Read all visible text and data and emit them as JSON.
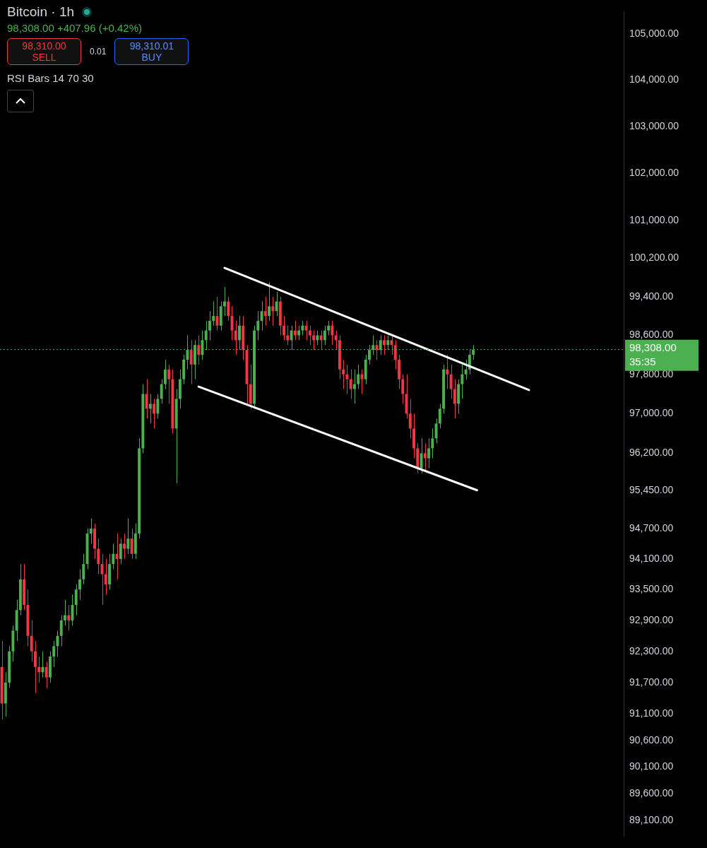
{
  "chart_data": {
    "type": "candlestick",
    "title": "Bitcoin · 1h",
    "subtitle": "98,308.00 +407.96 (+0.42%)",
    "annotations": [
      "98,310.00",
      "SELL",
      "0.01",
      "98,310.01",
      "BUY",
      "RSI Bars 14 70 30",
      "35:35"
    ],
    "categories": [
      null,
      null,
      null,
      null,
      null,
      null,
      null,
      null,
      null,
      null,
      null,
      null,
      null,
      null,
      null,
      null,
      null,
      null,
      null,
      null,
      null,
      null,
      null,
      null,
      null,
      null,
      null,
      null,
      null,
      null,
      null,
      null,
      null,
      null,
      null,
      null,
      null,
      null,
      null,
      null,
      null,
      null,
      null,
      null,
      null,
      null,
      null,
      null,
      null,
      null,
      null,
      null,
      null,
      null,
      null,
      null,
      null,
      null,
      null,
      null,
      null,
      null,
      null,
      null,
      null,
      null,
      null,
      null,
      null,
      null,
      null,
      null,
      null,
      null,
      null,
      null,
      null,
      null,
      null,
      null,
      null,
      null,
      null,
      null,
      null,
      null,
      null,
      null,
      null,
      null,
      null,
      null,
      null,
      null,
      null,
      null,
      null,
      null,
      null,
      null,
      null,
      null,
      null,
      null,
      null,
      null,
      null,
      null,
      null,
      null,
      null,
      null,
      null,
      null,
      null,
      null,
      null,
      null,
      null,
      null,
      null,
      null,
      null,
      null,
      null,
      null,
      null,
      null,
      null,
      null,
      null,
      null,
      null,
      null,
      null,
      null,
      null,
      null,
      null,
      null,
      null,
      null,
      null,
      null,
      null,
      null,
      null,
      null,
      null,
      null,
      null,
      null,
      null,
      null,
      null,
      null,
      null,
      null,
      null,
      null,
      null,
      null,
      null,
      null,
      null,
      null,
      null,
      null
    ],
    "ohlc": [
      [
        92000,
        92500,
        91000,
        91300
      ],
      [
        91300,
        91900,
        91050,
        91700
      ],
      [
        91700,
        92400,
        91600,
        92300
      ],
      [
        92300,
        92800,
        92100,
        92700
      ],
      [
        92700,
        93300,
        92500,
        93100
      ],
      [
        93100,
        94000,
        93000,
        93700
      ],
      [
        93700,
        94000,
        93100,
        93200
      ],
      [
        93200,
        93500,
        92400,
        92600
      ],
      [
        92600,
        92900,
        92100,
        92300
      ],
      [
        92300,
        92500,
        91500,
        92000
      ],
      [
        92000,
        92200,
        91700,
        91900
      ],
      [
        91900,
        92300,
        91800,
        92000
      ],
      [
        92000,
        92100,
        91600,
        91800
      ],
      [
        91800,
        92300,
        91700,
        92200
      ],
      [
        92200,
        92500,
        92000,
        92400
      ],
      [
        92400,
        92700,
        92200,
        92600
      ],
      [
        92600,
        93000,
        92400,
        92900
      ],
      [
        92900,
        93300,
        92800,
        93000
      ],
      [
        93000,
        93200,
        92700,
        92900
      ],
      [
        92900,
        93400,
        92800,
        93200
      ],
      [
        93200,
        93600,
        93000,
        93500
      ],
      [
        93500,
        93900,
        93300,
        93700
      ],
      [
        93700,
        94200,
        93600,
        94000
      ],
      [
        94000,
        94700,
        93900,
        94600
      ],
      [
        94600,
        94900,
        94400,
        94700
      ],
      [
        94700,
        94800,
        94100,
        94300
      ],
      [
        94300,
        94500,
        93800,
        94000
      ],
      [
        94000,
        94200,
        93200,
        93800
      ],
      [
        93800,
        94100,
        93400,
        93600
      ],
      [
        93600,
        94200,
        93500,
        94000
      ],
      [
        94000,
        94400,
        93900,
        94200
      ],
      [
        94200,
        94600,
        93700,
        94100
      ],
      [
        94100,
        94500,
        94000,
        94400
      ],
      [
        94400,
        94600,
        94100,
        94300
      ],
      [
        94300,
        94900,
        94200,
        94500
      ],
      [
        94500,
        94700,
        94100,
        94200
      ],
      [
        94200,
        94800,
        94100,
        94600
      ],
      [
        94600,
        96500,
        94500,
        96300
      ],
      [
        96300,
        97600,
        96200,
        97400
      ],
      [
        97400,
        97700,
        96900,
        97100
      ],
      [
        97100,
        97400,
        96800,
        97200
      ],
      [
        97200,
        97300,
        96700,
        97000
      ],
      [
        97000,
        97400,
        96900,
        97300
      ],
      [
        97300,
        97700,
        97200,
        97600
      ],
      [
        97600,
        98100,
        97500,
        97900
      ],
      [
        97900,
        98000,
        97200,
        97700
      ],
      [
        97700,
        97900,
        96600,
        96700
      ],
      [
        96700,
        97500,
        95600,
        97300
      ],
      [
        97300,
        97900,
        97100,
        97700
      ],
      [
        97700,
        98200,
        97600,
        98100
      ],
      [
        98100,
        98600,
        97900,
        98300
      ],
      [
        98300,
        98500,
        97600,
        98000
      ],
      [
        98000,
        98500,
        97700,
        98400
      ],
      [
        98400,
        98600,
        98000,
        98200
      ],
      [
        98200,
        98700,
        98100,
        98500
      ],
      [
        98500,
        98900,
        98300,
        98700
      ],
      [
        98700,
        99100,
        98500,
        98900
      ],
      [
        98900,
        99300,
        98800,
        99000
      ],
      [
        99000,
        99400,
        98700,
        98800
      ],
      [
        98800,
        99300,
        98700,
        99200
      ],
      [
        99200,
        99600,
        99000,
        99300
      ],
      [
        99300,
        99400,
        98900,
        99000
      ],
      [
        99000,
        99200,
        98500,
        98700
      ],
      [
        98700,
        98900,
        98200,
        98500
      ],
      [
        98500,
        99000,
        98300,
        98800
      ],
      [
        98800,
        99000,
        98100,
        98300
      ],
      [
        98300,
        98400,
        97200,
        97600
      ],
      [
        97600,
        98000,
        97100,
        97200
      ],
      [
        97200,
        98800,
        97100,
        98700
      ],
      [
        98700,
        99100,
        98500,
        98900
      ],
      [
        98900,
        99300,
        98700,
        99100
      ],
      [
        99100,
        99400,
        98800,
        99000
      ],
      [
        99000,
        99700,
        98900,
        99200
      ],
      [
        99200,
        99400,
        98800,
        99100
      ],
      [
        99100,
        99500,
        99000,
        99300
      ],
      [
        99300,
        99400,
        98600,
        98800
      ],
      [
        98800,
        99000,
        98500,
        98600
      ],
      [
        98600,
        98800,
        98400,
        98500
      ],
      [
        98500,
        98800,
        98300,
        98700
      ],
      [
        98700,
        98900,
        98500,
        98600
      ],
      [
        98600,
        98800,
        98500,
        98700
      ],
      [
        98700,
        98900,
        98600,
        98800
      ],
      [
        98800,
        98900,
        98500,
        98700
      ],
      [
        98700,
        98800,
        98400,
        98600
      ],
      [
        98600,
        98700,
        98300,
        98500
      ],
      [
        98500,
        98700,
        98400,
        98600
      ],
      [
        98600,
        98700,
        98300,
        98500
      ],
      [
        98500,
        98800,
        98400,
        98700
      ],
      [
        98700,
        98900,
        98600,
        98800
      ],
      [
        98800,
        98900,
        98400,
        98600
      ],
      [
        98600,
        98700,
        98300,
        98500
      ],
      [
        98500,
        98600,
        97700,
        97900
      ],
      [
        97900,
        98100,
        97500,
        97800
      ],
      [
        97800,
        98000,
        97400,
        97700
      ],
      [
        97700,
        97900,
        97300,
        97500
      ],
      [
        97500,
        97900,
        97200,
        97600
      ],
      [
        97600,
        98000,
        97500,
        97800
      ],
      [
        97800,
        97900,
        97400,
        97700
      ],
      [
        97700,
        98200,
        97600,
        98100
      ],
      [
        98100,
        98400,
        98000,
        98300
      ],
      [
        98300,
        98600,
        98200,
        98400
      ],
      [
        98400,
        98500,
        98100,
        98300
      ],
      [
        98300,
        98600,
        98200,
        98500
      ],
      [
        98500,
        98600,
        98200,
        98400
      ],
      [
        98400,
        98600,
        98300,
        98500
      ],
      [
        98500,
        98600,
        98200,
        98400
      ],
      [
        98400,
        98500,
        97900,
        98100
      ],
      [
        98100,
        98200,
        97500,
        97700
      ],
      [
        97700,
        97800,
        97200,
        97400
      ],
      [
        97400,
        97800,
        96900,
        97000
      ],
      [
        97000,
        97300,
        96500,
        96700
      ],
      [
        96700,
        97000,
        96100,
        96300
      ],
      [
        96300,
        96400,
        95800,
        95900
      ],
      [
        95900,
        96500,
        95800,
        96200
      ],
      [
        96200,
        96400,
        95850,
        96100
      ],
      [
        96100,
        96500,
        95900,
        96300
      ],
      [
        96300,
        96700,
        96100,
        96500
      ],
      [
        96500,
        96900,
        96400,
        96800
      ],
      [
        96800,
        97200,
        96700,
        97100
      ],
      [
        97100,
        98000,
        97000,
        97900
      ],
      [
        97900,
        98200,
        97500,
        97800
      ],
      [
        97800,
        98000,
        97300,
        97500
      ],
      [
        97500,
        97700,
        96900,
        97200
      ],
      [
        97200,
        97700,
        97000,
        97600
      ],
      [
        97600,
        98000,
        97300,
        97800
      ],
      [
        97800,
        98100,
        97700,
        97900
      ],
      [
        97900,
        98300,
        97800,
        98200
      ],
      [
        98200,
        98400,
        98100,
        98308
      ],
      null,
      null,
      null,
      null,
      null,
      null,
      null,
      null,
      null,
      null,
      null,
      null,
      null,
      null,
      null,
      null,
      null,
      null,
      null,
      null,
      null,
      null,
      null,
      null,
      null,
      null,
      null,
      null,
      null,
      null,
      null,
      null,
      null,
      null,
      null,
      null,
      null,
      null,
      null,
      null
    ],
    "colors": [
      "#f23645",
      "#4caf50",
      "#4caf50",
      "#4caf50",
      "#4caf50",
      "#4caf50",
      "#f23645",
      "#f23645",
      "#f23645",
      "#f23645",
      "#f23645",
      "#4caf50",
      "#f23645",
      "#4caf50",
      "#4caf50",
      "#4caf50",
      "#4caf50",
      "#4caf50",
      "#f23645",
      "#4caf50",
      "#4caf50",
      "#4caf50",
      "#4caf50",
      "#4caf50",
      "#4caf50",
      "#f23645",
      "#f23645",
      "#f23645",
      "#f23645",
      "#4caf50",
      "#4caf50",
      "#f23645",
      "#4caf50",
      "#f23645",
      "#4caf50",
      "#f23645",
      "#4caf50",
      "#4caf50",
      "#4caf50",
      "#f23645",
      "#4caf50",
      "#f23645",
      "#4caf50",
      "#4caf50",
      "#4caf50",
      "#f23645",
      "#f23645",
      "#4caf50",
      "#4caf50",
      "#4caf50",
      "#4caf50",
      "#f23645",
      "#4caf50",
      "#f23645",
      "#4caf50",
      "#4caf50",
      "#4caf50",
      "#4caf50",
      "#f23645",
      "#4caf50",
      "#4caf50",
      "#f23645",
      "#f23645",
      "#f23645",
      "#4caf50",
      "#f23645",
      "#f23645",
      "#f23645",
      "#4caf50",
      "#4caf50",
      "#4caf50",
      "#f23645",
      "#4caf50",
      "#f23645",
      "#4caf50",
      "#f23645",
      "#f23645",
      "#f23645",
      "#4caf50",
      "#f23645",
      "#4caf50",
      "#4caf50",
      "#f23645",
      "#f23645",
      "#f23645",
      "#4caf50",
      "#f23645",
      "#4caf50",
      "#4caf50",
      "#f23645",
      "#f23645",
      "#f23645",
      "#f23645",
      "#f23645",
      "#f23645",
      "#4caf50",
      "#4caf50",
      "#f23645",
      "#4caf50",
      "#4caf50",
      "#4caf50",
      "#f23645",
      "#4caf50",
      "#f23645",
      "#4caf50",
      "#f23645",
      "#f23645",
      "#f23645",
      "#f23645",
      "#f23645",
      "#f23645",
      "#f23645",
      "#f23645",
      "#4caf50",
      "#f23645",
      "#4caf50",
      "#4caf50",
      "#4caf50",
      "#4caf50",
      "#4caf50",
      "#f23645",
      "#f23645",
      "#f23645",
      "#4caf50",
      "#4caf50",
      "#4caf50",
      "#4caf50",
      "#4caf50",
      null,
      null,
      null,
      null,
      null,
      null,
      null,
      null,
      null,
      null,
      null,
      null,
      null,
      null,
      null,
      null,
      null,
      null,
      null,
      null,
      null,
      null,
      null,
      null,
      null,
      null,
      null,
      null,
      null,
      null,
      null,
      null,
      null,
      null,
      null,
      null,
      null,
      null,
      null,
      null
    ],
    "series": [
      {
        "type": "line",
        "color": "#ffffff",
        "values": [
          null,
          null,
          null,
          null,
          null,
          null,
          null,
          null,
          null,
          null,
          null,
          null,
          null,
          null,
          null,
          null,
          null,
          null,
          null,
          null,
          null,
          null,
          null,
          null,
          null,
          null,
          null,
          null,
          null,
          null,
          null,
          null,
          null,
          null,
          null,
          null,
          null,
          null,
          null,
          null,
          null,
          null,
          null,
          null,
          null,
          null,
          null,
          null,
          null,
          null,
          null,
          null,
          null,
          null,
          null,
          null,
          null,
          null,
          null,
          null,
          100000,
          null,
          null,
          null,
          null,
          null,
          null,
          null,
          null,
          null,
          null,
          null,
          null,
          null,
          null,
          null,
          null,
          null,
          null,
          null,
          null,
          null,
          null,
          null,
          null,
          null,
          null,
          null,
          null,
          null,
          null,
          null,
          null,
          null,
          null,
          null,
          null,
          null,
          null,
          null,
          null,
          null,
          null,
          null,
          null,
          null,
          null,
          null,
          null,
          null,
          null,
          null,
          null,
          null,
          null,
          null,
          null,
          null,
          null,
          null,
          null,
          null,
          null,
          null,
          null,
          null,
          null,
          null,
          null,
          null,
          null,
          null,
          null,
          null,
          null,
          null,
          null,
          null,
          null,
          null,
          null,
          null,
          97480,
          null,
          null,
          null,
          null,
          null,
          null,
          null,
          null,
          null,
          null,
          null,
          null,
          null,
          null,
          null,
          null,
          null,
          null,
          null,
          null,
          null,
          null,
          null,
          null,
          null
        ]
      },
      {
        "type": "line",
        "color": "#ffffff",
        "values": [
          null,
          null,
          null,
          null,
          null,
          null,
          null,
          null,
          null,
          null,
          null,
          null,
          null,
          null,
          null,
          null,
          null,
          null,
          null,
          null,
          null,
          null,
          null,
          null,
          null,
          null,
          null,
          null,
          null,
          null,
          null,
          null,
          null,
          null,
          null,
          null,
          null,
          null,
          null,
          null,
          null,
          null,
          null,
          null,
          null,
          null,
          null,
          null,
          null,
          null,
          null,
          null,
          null,
          97550,
          null,
          null,
          null,
          null,
          null,
          null,
          null,
          null,
          null,
          null,
          null,
          null,
          null,
          null,
          null,
          null,
          null,
          null,
          null,
          null,
          null,
          null,
          null,
          null,
          null,
          null,
          null,
          null,
          null,
          null,
          null,
          null,
          null,
          null,
          null,
          null,
          null,
          null,
          null,
          null,
          null,
          null,
          null,
          null,
          null,
          null,
          null,
          null,
          null,
          null,
          null,
          null,
          null,
          null,
          null,
          null,
          null,
          null,
          null,
          null,
          null,
          null,
          null,
          null,
          null,
          null,
          null,
          null,
          null,
          null,
          null,
          null,
          null,
          null,
          95460,
          null,
          null,
          null,
          null,
          null,
          null,
          null,
          null,
          null,
          null,
          null,
          null,
          null,
          null,
          null,
          null,
          null,
          null,
          null,
          null,
          null,
          null,
          null,
          null,
          null,
          null,
          null,
          null,
          null,
          null,
          null,
          null,
          null,
          null,
          null,
          null,
          null,
          null,
          null
        ]
      }
    ],
    "ref_lines": [
      {
        "axis": "y",
        "value": 98308,
        "label": "98,308.00",
        "color": "#4caf50",
        "line_style": "dotted"
      }
    ],
    "log": true,
    "ylim": [
      88800,
      105500
    ],
    "yticks": [
      {
        "value": 89100,
        "label": "89,100.00"
      },
      {
        "value": 89600,
        "label": "89,600.00"
      },
      {
        "value": 90100,
        "label": "90,100.00"
      },
      {
        "value": 90600,
        "label": "90,600.00"
      },
      {
        "value": 91100,
        "label": "91,100.00"
      },
      {
        "value": 91700,
        "label": "91,700.00"
      },
      {
        "value": 92300,
        "label": "92,300.00"
      },
      {
        "value": 92900,
        "label": "92,900.00"
      },
      {
        "value": 93500,
        "label": "93,500.00"
      },
      {
        "value": 94100,
        "label": "94,100.00"
      },
      {
        "value": 94700,
        "label": "94,700.00"
      },
      {
        "value": 95450,
        "label": "95,450.00"
      },
      {
        "value": 96200,
        "label": "96,200.00"
      },
      {
        "value": 97000,
        "label": "97,000.00"
      },
      {
        "value": 97800,
        "label": "97,800.00"
      },
      {
        "value": 98600,
        "label": "98,600.00"
      },
      {
        "value": 99400,
        "label": "99,400.00"
      },
      {
        "value": 100200,
        "label": "100,200.00"
      },
      {
        "value": 101000,
        "label": "101,000.00"
      },
      {
        "value": 102000,
        "label": "102,000.00"
      },
      {
        "value": 103000,
        "label": "103,000.00"
      },
      {
        "value": 104000,
        "label": "104,000.00"
      },
      {
        "value": 105000,
        "label": "105,000.00"
      }
    ],
    "tick_labels": "y",
    "legend": false
  }
}
